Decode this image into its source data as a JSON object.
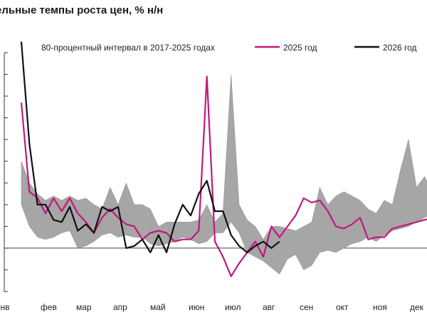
{
  "chart_data": {
    "type": "line",
    "title": "недельные темпы роста цен, % н/н",
    "title_visible": "ельные темпы роста цен, % н/н",
    "x_tick_labels": [
      "янв",
      "фев",
      "мар",
      "апр",
      "май",
      "июн",
      "июл",
      "авг",
      "сен",
      "окт",
      "ноя",
      "дек"
    ],
    "x_range": [
      1,
      52
    ],
    "y_range": [
      -0.2,
      0.9
    ],
    "legend": {
      "band_label": "80-процентный интервал в 2017-2025 годах",
      "placement": "top"
    },
    "band": {
      "name": "80-процентный интервал в 2017-2025 годах",
      "color": "#a6a6a6",
      "x": [
        1,
        2,
        3,
        4,
        5,
        6,
        7,
        8,
        9,
        10,
        11,
        12,
        13,
        14,
        15,
        16,
        17,
        18,
        19,
        20,
        21,
        22,
        23,
        24,
        25,
        26,
        27,
        28,
        29,
        30,
        31,
        32,
        33,
        34,
        35,
        36,
        37,
        38,
        39,
        40,
        41,
        42,
        43,
        44,
        45,
        46,
        47,
        48,
        49,
        50,
        51,
        52
      ],
      "low": [
        0.2,
        0.1,
        0.05,
        0.04,
        0.05,
        0.07,
        0.08,
        0.0,
        0.01,
        0.03,
        0.06,
        0.07,
        0.05,
        0.06,
        0.05,
        0.05,
        0.02,
        0.01,
        0.02,
        0.03,
        0.05,
        0.04,
        0.02,
        0.03,
        0.07,
        0.07,
        0.12,
        0.07,
        -0.02,
        -0.04,
        -0.06,
        -0.09,
        -0.12,
        -0.05,
        -0.03,
        -0.1,
        -0.08,
        -0.02,
        -0.01,
        -0.02,
        0.0,
        0.02,
        0.03,
        0.05,
        0.03,
        0.06,
        0.08,
        0.09,
        0.1,
        0.12,
        0.14,
        0.16
      ],
      "high": [
        0.4,
        0.3,
        0.25,
        0.22,
        0.24,
        0.22,
        0.24,
        0.22,
        0.23,
        0.2,
        0.18,
        0.28,
        0.2,
        0.3,
        0.2,
        0.2,
        0.18,
        0.1,
        0.12,
        0.12,
        0.12,
        0.12,
        0.13,
        0.2,
        0.12,
        0.16,
        0.8,
        0.2,
        0.13,
        0.1,
        0.04,
        0.1,
        0.1,
        0.09,
        0.08,
        0.1,
        0.12,
        0.28,
        0.2,
        0.24,
        0.26,
        0.24,
        0.22,
        0.18,
        0.16,
        0.22,
        0.2,
        0.36,
        0.5,
        0.28,
        0.33,
        0.25
      ]
    },
    "series": [
      {
        "name": "2025 год",
        "color": "#c2187e",
        "x": [
          1,
          2,
          3,
          4,
          5,
          6,
          7,
          8,
          9,
          10,
          11,
          12,
          13,
          14,
          15,
          16,
          17,
          18,
          19,
          20,
          21,
          22,
          23,
          24,
          25,
          26,
          27,
          28,
          29,
          30,
          31,
          32,
          33,
          34,
          35,
          36,
          37,
          38,
          39,
          40,
          41,
          42,
          43,
          44,
          45,
          46,
          47,
          48,
          49,
          50,
          51,
          52
        ],
        "values": [
          0.67,
          0.26,
          0.23,
          0.16,
          0.23,
          0.17,
          0.23,
          0.16,
          0.12,
          0.07,
          0.14,
          0.18,
          0.14,
          0.11,
          0.1,
          0.04,
          0.07,
          0.08,
          0.07,
          0.03,
          0.04,
          0.04,
          0.08,
          0.79,
          0.03,
          -0.04,
          -0.13,
          -0.07,
          -0.02,
          0.03,
          -0.04,
          0.1,
          0.05,
          0.1,
          0.15,
          0.23,
          0.21,
          0.22,
          0.17,
          0.1,
          0.09,
          0.11,
          0.14,
          0.04,
          0.05,
          0.05,
          0.09,
          0.1,
          0.11,
          0.12,
          0.13,
          0.14
        ]
      },
      {
        "name": "2026 год",
        "color": "#111111",
        "x": [
          1,
          2,
          3,
          4,
          5,
          6,
          7,
          8,
          9,
          10,
          11,
          12,
          13,
          14,
          15,
          16,
          17,
          18,
          19,
          20,
          21,
          22,
          23,
          24,
          25,
          26,
          27,
          28,
          29,
          30,
          31,
          32,
          33
        ],
        "values": [
          0.95,
          0.48,
          0.2,
          0.2,
          0.13,
          0.12,
          0.19,
          0.08,
          0.11,
          0.07,
          0.19,
          0.17,
          0.19,
          0.0,
          0.01,
          0.04,
          -0.02,
          0.06,
          -0.02,
          0.11,
          0.2,
          0.15,
          0.25,
          0.31,
          0.17,
          0.17,
          0.06,
          0.01,
          -0.02,
          0.01,
          0.03,
          0.0,
          0.03
        ]
      }
    ],
    "grid": false
  }
}
